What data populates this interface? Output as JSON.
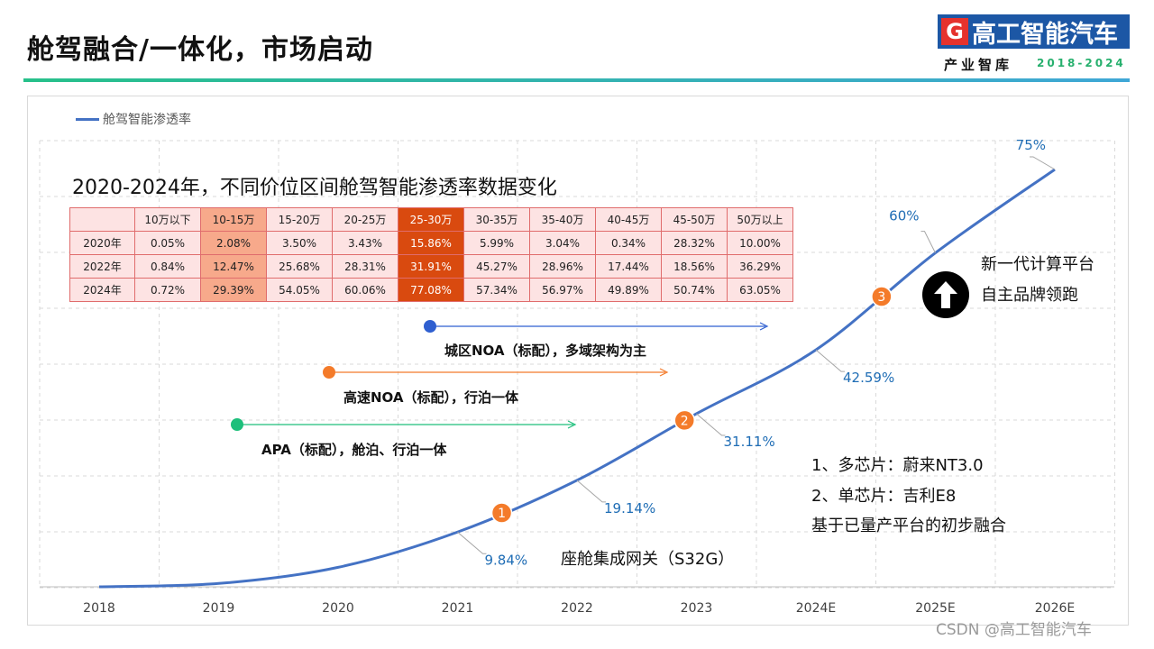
{
  "header": {
    "title": "舱驾融合/一体化，市场启动",
    "logo_text": "高工智能汽车",
    "logo_mark": "G",
    "logo_sub": "产业智库",
    "logo_years": "2018-2024"
  },
  "colors": {
    "line": "#4472c4",
    "accent_green": "#1dbf7b",
    "accent_orange": "#f47b2a",
    "accent_blue": "#2f5fd0",
    "label_blue": "#1f6db5"
  },
  "chart_data": {
    "type": "line",
    "legend": "舱驾智能渗透率",
    "categories": [
      "2018",
      "2019",
      "2020",
      "2021",
      "2022",
      "2023",
      "2024E",
      "2025E",
      "2026E"
    ],
    "series": [
      {
        "name": "舱驾智能渗透率",
        "values": [
          0,
          0.6,
          3.5,
          9.84,
          19.14,
          31.11,
          42.59,
          60,
          75
        ]
      }
    ],
    "ylim": [
      0,
      75
    ],
    "data_labels": [
      {
        "index": 3,
        "text": "9.84%"
      },
      {
        "index": 4,
        "text": "19.14%"
      },
      {
        "index": 5,
        "text": "31.11%"
      },
      {
        "index": 6,
        "text": "42.59%"
      },
      {
        "index": 7,
        "text": "60%"
      },
      {
        "index": 8,
        "text": "75%"
      }
    ],
    "markers": [
      {
        "label": "1",
        "x_data": 3.37
      },
      {
        "label": "2",
        "x_data": 4.9
      },
      {
        "label": "3",
        "x_data": 6.55
      }
    ],
    "grid": true
  },
  "table": {
    "heading": "2020-2024年，不同价位区间舱驾智能渗透率数据变化",
    "columns": [
      "",
      "10万以下",
      "10-15万",
      "15-20万",
      "20-25万",
      "25-30万",
      "30-35万",
      "35-40万",
      "40-45万",
      "45-50万",
      "50万以上"
    ],
    "rows": [
      {
        "year": "2020年",
        "values": [
          "0.05%",
          "2.08%",
          "3.50%",
          "3.43%",
          "15.86%",
          "5.99%",
          "3.04%",
          "0.34%",
          "28.32%",
          "10.00%"
        ]
      },
      {
        "year": "2022年",
        "values": [
          "0.84%",
          "12.47%",
          "25.68%",
          "28.31%",
          "31.91%",
          "45.27%",
          "28.96%",
          "17.44%",
          "18.56%",
          "36.29%"
        ]
      },
      {
        "year": "2024年",
        "values": [
          "0.72%",
          "29.39%",
          "54.05%",
          "60.06%",
          "77.08%",
          "57.34%",
          "56.97%",
          "49.89%",
          "50.74%",
          "63.05%"
        ]
      }
    ]
  },
  "milestones": {
    "apa": "APA（标配），舱泊、行泊一体",
    "highway_noa": "高速NOA（标配），行泊一体",
    "city_noa": "城区NOA（标配），多域架构为主"
  },
  "notes": {
    "gateway": "座舱集成网关（S32G）",
    "chip_multi": "1、多芯片：蔚来NT3.0",
    "chip_single": "2、单芯片：吉利E8",
    "platform": "基于已量产平台的初步融合",
    "compute_1": "新一代计算平台",
    "compute_2": "自主品牌领跑"
  },
  "watermark": "CSDN @高工智能汽车"
}
